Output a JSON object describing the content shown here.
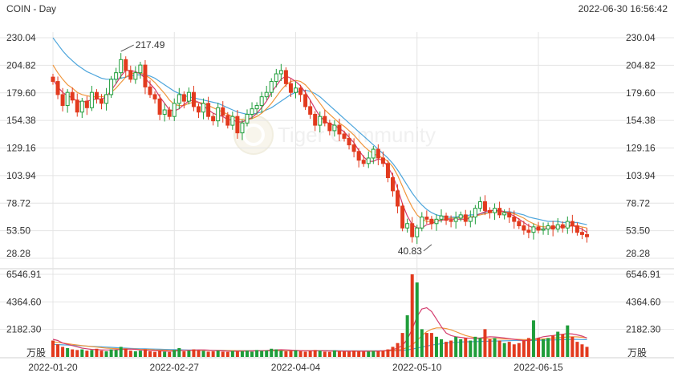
{
  "header": {
    "title": "COIN - Day",
    "timestamp": "2022-06-30 16:56:42"
  },
  "watermark": {
    "text": "Tiger Community"
  },
  "colors": {
    "up": "#1f9d3a",
    "down": "#e23a1e",
    "ma_short": "#d43c6e",
    "ma_mid": "#f0963c",
    "ma_long": "#4ea6dc",
    "grid": "#e4e4e4",
    "text": "#333333"
  },
  "chart_data": [
    {
      "type": "candlestick",
      "y_ticks": [
        "230.04",
        "204.82",
        "179.60",
        "154.38",
        "129.16",
        "103.94",
        "78.72",
        "53.50",
        "28.28"
      ],
      "ylim": [
        28.28,
        230.04
      ],
      "x_ticks": [
        {
          "label": "2022-01-20",
          "index": 0
        },
        {
          "label": "2022-02-27",
          "index": 25
        },
        {
          "label": "2022-04-04",
          "index": 50
        },
        {
          "label": "2022-05-10",
          "index": 75
        },
        {
          "label": "2022-06-15",
          "index": 100
        }
      ],
      "annotations": [
        {
          "label": "217.49",
          "value": 217.49,
          "index": 14
        },
        {
          "label": "40.83",
          "value": 40.83,
          "index": 78
        }
      ],
      "close": [
        190,
        178,
        168,
        180,
        173,
        162,
        172,
        166,
        180,
        174,
        170,
        178,
        192,
        198,
        210,
        200,
        192,
        198,
        205,
        185,
        178,
        174,
        160,
        164,
        158,
        170,
        178,
        172,
        180,
        167,
        162,
        170,
        158,
        154,
        166,
        159,
        150,
        158,
        143,
        152,
        160,
        165,
        168,
        176,
        180,
        190,
        197,
        200,
        188,
        180,
        184,
        178,
        167,
        160,
        150,
        158,
        152,
        145,
        150,
        142,
        138,
        132,
        126,
        118,
        115,
        120,
        128,
        120,
        115,
        102,
        90,
        76,
        56,
        60,
        48,
        56,
        66,
        64,
        60,
        64,
        67,
        63,
        62,
        65,
        68,
        62,
        66,
        74,
        80,
        72,
        70,
        74,
        68,
        70,
        66,
        62,
        58,
        54,
        52,
        57,
        54,
        55,
        58,
        55,
        59,
        56,
        62,
        58,
        52,
        50,
        48
      ],
      "ma_short": [
        192,
        185,
        180,
        177,
        175,
        172,
        171,
        172,
        173,
        174,
        174,
        176,
        182,
        188,
        195,
        200,
        200,
        199,
        197,
        193,
        188,
        183,
        176,
        170,
        164,
        163,
        165,
        169,
        172,
        173,
        171,
        168,
        164,
        161,
        159,
        158,
        155,
        155,
        153,
        153,
        155,
        157,
        161,
        166,
        172,
        180,
        186,
        192,
        195,
        193,
        190,
        186,
        180,
        173,
        165,
        158,
        154,
        151,
        150,
        147,
        144,
        139,
        134,
        127,
        121,
        117,
        117,
        119,
        118,
        112,
        104,
        92,
        78,
        67,
        59,
        56,
        56,
        59,
        60,
        62,
        63,
        64,
        64,
        64,
        64,
        64,
        65,
        67,
        69,
        71,
        72,
        72,
        72,
        71,
        69,
        67,
        64,
        61,
        58,
        56,
        55,
        55,
        56,
        56,
        57,
        57,
        58,
        58,
        57,
        55,
        52
      ],
      "ma_mid": [
        205,
        198,
        192,
        187,
        184,
        180,
        178,
        177,
        176,
        176,
        176,
        177,
        180,
        184,
        189,
        194,
        197,
        198,
        198,
        196,
        193,
        189,
        184,
        179,
        173,
        169,
        168,
        168,
        170,
        171,
        171,
        170,
        168,
        166,
        164,
        162,
        160,
        158,
        156,
        155,
        155,
        156,
        158,
        161,
        165,
        170,
        176,
        182,
        187,
        190,
        191,
        190,
        187,
        182,
        176,
        170,
        164,
        160,
        156,
        152,
        149,
        145,
        141,
        136,
        131,
        127,
        124,
        122,
        120,
        117,
        112,
        104,
        94,
        84,
        75,
        68,
        64,
        62,
        62,
        63,
        63,
        64,
        65,
        65,
        66,
        66,
        66,
        67,
        68,
        69,
        70,
        71,
        71,
        71,
        70,
        69,
        67,
        65,
        62,
        60,
        58,
        57,
        57,
        57,
        57,
        57,
        57,
        58,
        58,
        57,
        56
      ],
      "ma_long": [
        230,
        224,
        218,
        213,
        209,
        205,
        202,
        199,
        197,
        195,
        193,
        192,
        192,
        192,
        193,
        194,
        195,
        196,
        196,
        196,
        195,
        193,
        190,
        187,
        184,
        181,
        179,
        177,
        176,
        175,
        174,
        173,
        172,
        171,
        170,
        168,
        166,
        164,
        162,
        161,
        160,
        160,
        161,
        162,
        164,
        166,
        169,
        172,
        175,
        178,
        180,
        181,
        182,
        181,
        179,
        176,
        172,
        168,
        164,
        160,
        156,
        152,
        148,
        144,
        140,
        136,
        132,
        128,
        124,
        120,
        115,
        109,
        102,
        95,
        88,
        82,
        77,
        73,
        70,
        68,
        67,
        66,
        66,
        66,
        67,
        67,
        68,
        68,
        69,
        70,
        70,
        71,
        71,
        71,
        71,
        70,
        69,
        68,
        66,
        65,
        64,
        63,
        62,
        62,
        62,
        61,
        61,
        61,
        61,
        60,
        59
      ]
    },
    {
      "type": "bar",
      "y_ticks": [
        "6546.91",
        "4364.60",
        "2182.30"
      ],
      "unit": "万股",
      "ylim": [
        0,
        6546.91
      ],
      "volume": [
        1300,
        1000,
        800,
        700,
        600,
        550,
        600,
        500,
        550,
        650,
        500,
        450,
        600,
        550,
        800,
        650,
        500,
        450,
        500,
        600,
        450,
        400,
        500,
        420,
        400,
        550,
        700,
        450,
        500,
        600,
        520,
        480,
        420,
        450,
        500,
        420,
        400,
        480,
        450,
        460,
        500,
        420,
        550,
        480,
        520,
        650,
        600,
        500,
        450,
        480,
        520,
        460,
        420,
        480,
        550,
        500,
        420,
        400,
        520,
        460,
        430,
        420,
        500,
        450,
        420,
        430,
        470,
        460,
        500,
        600,
        800,
        1100,
        1900,
        3300,
        6546,
        5900,
        2200,
        1900,
        1900,
        1600,
        1400,
        1200,
        1300,
        1600,
        1400,
        1500,
        1300,
        1600,
        1500,
        2200,
        1400,
        1500,
        1300,
        1100,
        1200,
        1000,
        1100,
        1300,
        1500,
        2900,
        1500,
        1400,
        1500,
        1700,
        2000,
        1800,
        2500,
        1600,
        1200,
        1000,
        800
      ],
      "ma_short": [
        1400,
        1300,
        1100,
        1000,
        900,
        800,
        700,
        650,
        600,
        580,
        560,
        550,
        560,
        570,
        600,
        610,
        620,
        600,
        560,
        540,
        520,
        500,
        480,
        470,
        460,
        470,
        500,
        520,
        530,
        540,
        560,
        560,
        540,
        520,
        500,
        480,
        460,
        450,
        450,
        460,
        460,
        470,
        480,
        490,
        510,
        540,
        560,
        570,
        560,
        540,
        520,
        500,
        490,
        480,
        480,
        490,
        480,
        470,
        460,
        460,
        450,
        450,
        450,
        450,
        450,
        450,
        460,
        470,
        480,
        520,
        580,
        700,
        900,
        1400,
        2200,
        3200,
        3800,
        3900,
        3600,
        3000,
        2400,
        1900,
        1700,
        1600,
        1550,
        1500,
        1480,
        1460,
        1500,
        1560,
        1600,
        1580,
        1550,
        1500,
        1450,
        1400,
        1350,
        1300,
        1300,
        1380,
        1500,
        1600,
        1650,
        1700,
        1750,
        1800,
        1850,
        1820,
        1750,
        1650,
        1500
      ],
      "ma_mid": [
        1200,
        1150,
        1100,
        1050,
        1000,
        950,
        900,
        860,
        820,
        780,
        740,
        700,
        680,
        660,
        650,
        640,
        630,
        620,
        600,
        590,
        580,
        560,
        550,
        540,
        530,
        520,
        520,
        520,
        520,
        520,
        520,
        520,
        520,
        520,
        515,
        510,
        505,
        500,
        495,
        490,
        490,
        490,
        490,
        490,
        495,
        500,
        505,
        510,
        510,
        510,
        510,
        505,
        500,
        495,
        490,
        490,
        485,
        480,
        475,
        470,
        470,
        470,
        470,
        470,
        470,
        470,
        470,
        470,
        475,
        485,
        500,
        540,
        600,
        750,
        950,
        1300,
        1700,
        2000,
        2200,
        2300,
        2300,
        2250,
        2150,
        2000,
        1850,
        1700,
        1600,
        1520,
        1480,
        1460,
        1450,
        1440,
        1430,
        1420,
        1410,
        1400,
        1390,
        1380,
        1370,
        1380,
        1400,
        1430,
        1460,
        1490,
        1520,
        1550,
        1580,
        1600,
        1590,
        1560,
        1520
      ],
      "ma_long": [
        1000,
        980,
        960,
        940,
        920,
        900,
        880,
        860,
        840,
        820,
        800,
        780,
        760,
        740,
        720,
        700,
        680,
        660,
        650,
        640,
        630,
        620,
        610,
        600,
        590,
        580,
        570,
        560,
        550,
        545,
        540,
        535,
        530,
        525,
        520,
        515,
        510,
        505,
        500,
        500,
        500,
        500,
        500,
        500,
        500,
        500,
        500,
        500,
        500,
        500,
        500,
        500,
        500,
        500,
        500,
        500,
        500,
        500,
        500,
        495,
        490,
        485,
        480,
        480,
        480,
        480,
        480,
        480,
        480,
        485,
        490,
        500,
        520,
        560,
        620,
        700,
        780,
        860,
        940,
        1000,
        1050,
        1100,
        1130,
        1160,
        1180,
        1200,
        1210,
        1220,
        1230,
        1240,
        1250,
        1260,
        1270,
        1280,
        1290,
        1300,
        1300,
        1300,
        1300,
        1310,
        1320,
        1330,
        1340,
        1350,
        1360,
        1370,
        1380,
        1390,
        1390,
        1380,
        1370
      ]
    }
  ]
}
